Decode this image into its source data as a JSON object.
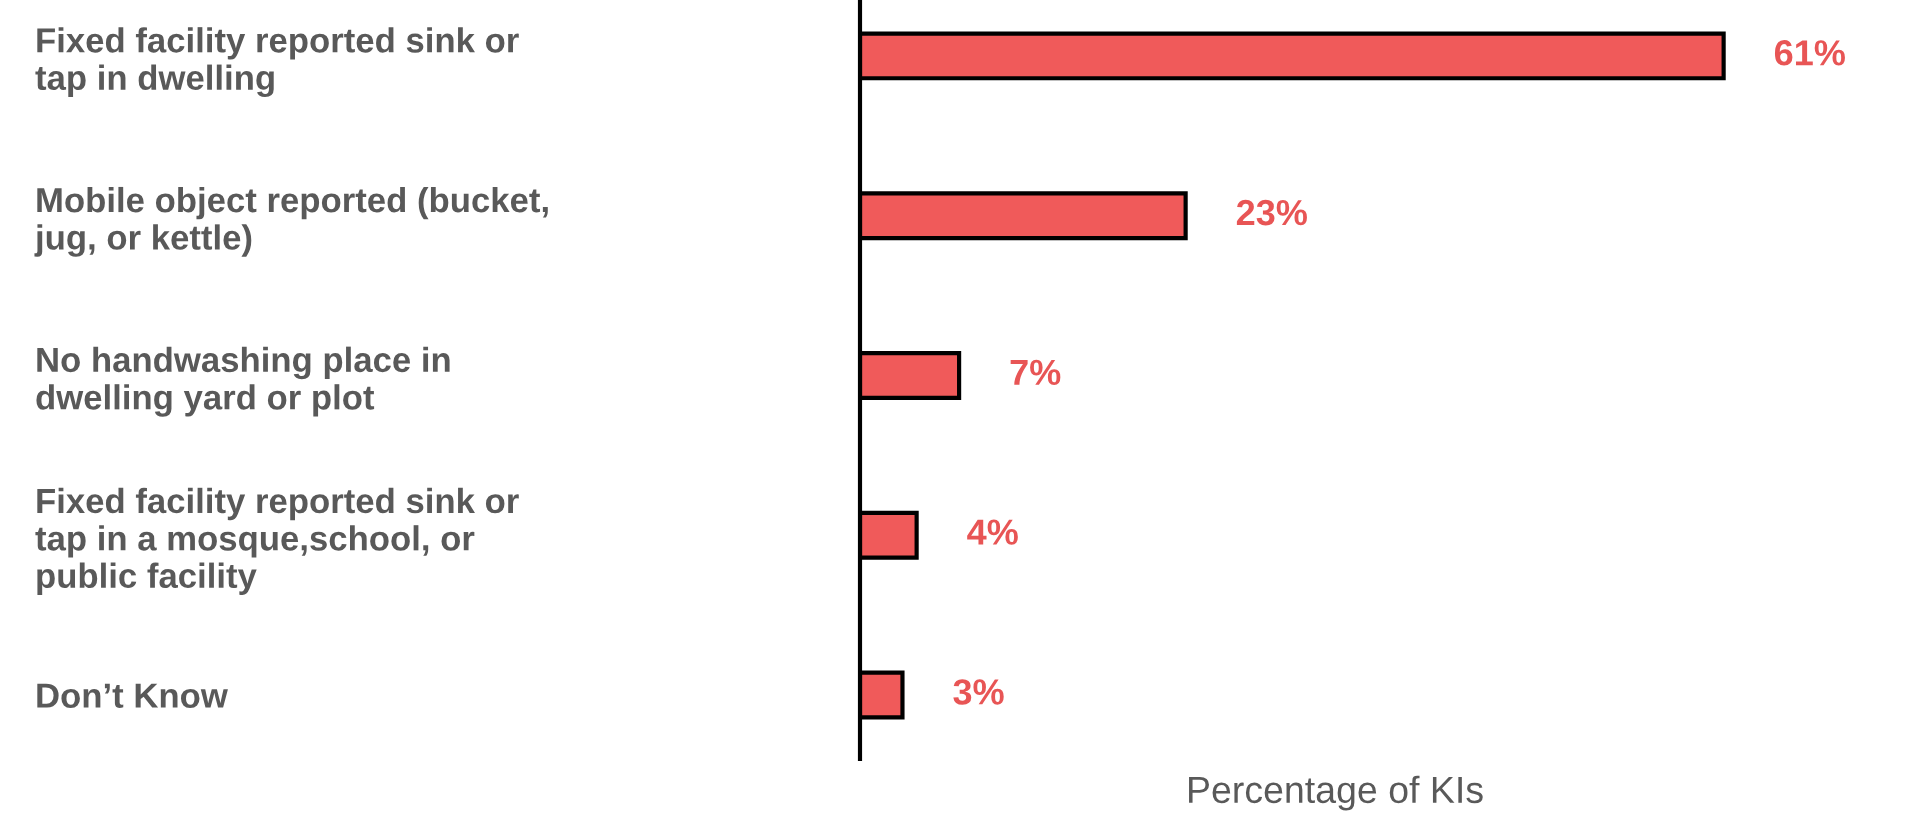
{
  "chart_data": {
    "type": "bar",
    "orientation": "horizontal",
    "xlabel": "Percentage of KIs",
    "categories": [
      "Fixed facility reported sink or tap in dwelling",
      "Mobile object reported (bucket, jug, or kettle)",
      "No handwashing place in dwelling yard or plot",
      "Fixed facility reported sink or tap in a mosque,school, or public facility",
      "Don’t Know"
    ],
    "values": [
      61,
      23,
      7,
      4,
      3
    ],
    "value_labels": [
      "61%",
      "23%",
      "7%",
      "4%",
      "3%"
    ],
    "color": "#f05a5a"
  }
}
